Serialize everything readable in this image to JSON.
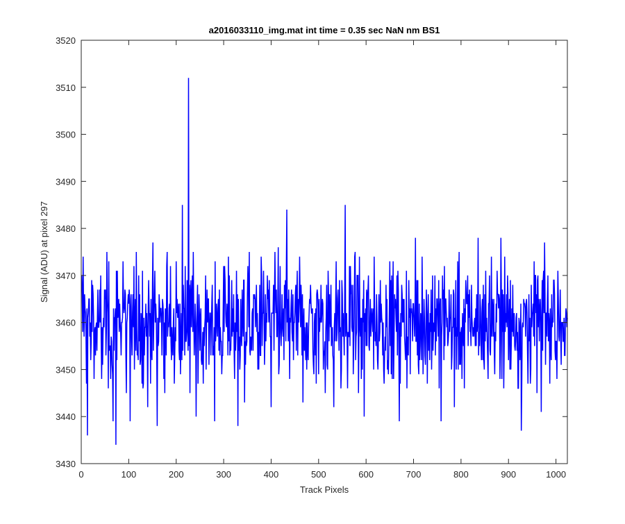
{
  "chart_data": {
    "type": "line",
    "title": "a2016033110_img.mat int time = 0.35 sec  NaN nm BS1",
    "xlabel": "Track Pixels",
    "ylabel": "Signal (ADU) at pixel 297",
    "xlim": [
      0,
      1024
    ],
    "ylim": [
      3430,
      3520
    ],
    "xticks": [
      0,
      100,
      200,
      300,
      400,
      500,
      600,
      700,
      800,
      900,
      1000
    ],
    "xtick_labels": [
      "0",
      "100",
      "200",
      "300",
      "400",
      "500",
      "600",
      "700",
      "800",
      "900",
      "1000"
    ],
    "yticks": [
      3430,
      3440,
      3450,
      3460,
      3470,
      3480,
      3490,
      3500,
      3510,
      3520
    ],
    "ytick_labels": [
      "3430",
      "3440",
      "3450",
      "3460",
      "3470",
      "3480",
      "3490",
      "3500",
      "3510",
      "3520"
    ],
    "grid": false,
    "series": [
      {
        "color": "#0000ff",
        "noise_baseline": 3460,
        "noise_stddev": 6,
        "n_points": 1024,
        "points": [
          [
            1,
            3470
          ],
          [
            4,
            3474
          ],
          [
            6,
            3457
          ],
          [
            9,
            3462
          ],
          [
            11,
            3447
          ],
          [
            13,
            3436
          ],
          [
            16,
            3465
          ],
          [
            20,
            3452
          ],
          [
            24,
            3468
          ],
          [
            30,
            3453
          ],
          [
            38,
            3461
          ],
          [
            43,
            3448
          ],
          [
            50,
            3465
          ],
          [
            57,
            3446
          ],
          [
            63,
            3457
          ],
          [
            67,
            3439
          ],
          [
            73,
            3434
          ],
          [
            76,
            3471
          ],
          [
            82,
            3460
          ],
          [
            88,
            3473
          ],
          [
            95,
            3445
          ],
          [
            103,
            3439
          ],
          [
            109,
            3466
          ],
          [
            115,
            3454
          ],
          [
            121,
            3470
          ],
          [
            128,
            3447
          ],
          [
            134,
            3459
          ],
          [
            140,
            3442
          ],
          [
            147,
            3465
          ],
          [
            155,
            3471
          ],
          [
            160,
            3438
          ],
          [
            167,
            3463
          ],
          [
            174,
            3448
          ],
          [
            181,
            3475
          ],
          [
            190,
            3452
          ],
          [
            196,
            3447
          ],
          [
            200,
            3473
          ],
          [
            207,
            3452
          ],
          [
            213,
            3485
          ],
          [
            218,
            3453
          ],
          [
            223,
            3469
          ],
          [
            226,
            3512
          ],
          [
            229,
            3445
          ],
          [
            236,
            3475
          ],
          [
            242,
            3440
          ],
          [
            248,
            3466
          ],
          [
            255,
            3452
          ],
          [
            262,
            3470
          ],
          [
            269,
            3451
          ],
          [
            276,
            3468
          ],
          [
            281,
            3439
          ],
          [
            288,
            3463
          ],
          [
            295,
            3456
          ],
          [
            302,
            3472
          ],
          [
            309,
            3453
          ],
          [
            317,
            3469
          ],
          [
            323,
            3448
          ],
          [
            330,
            3438
          ],
          [
            336,
            3465
          ],
          [
            344,
            3443
          ],
          [
            351,
            3472
          ],
          [
            358,
            3455
          ],
          [
            365,
            3466
          ],
          [
            372,
            3450
          ],
          [
            379,
            3474
          ],
          [
            386,
            3451
          ],
          [
            392,
            3470
          ],
          [
            400,
            3442
          ],
          [
            407,
            3465
          ],
          [
            415,
            3476
          ],
          [
            421,
            3455
          ],
          [
            427,
            3452
          ],
          [
            433,
            3484
          ],
          [
            439,
            3448
          ],
          [
            446,
            3466
          ],
          [
            453,
            3454
          ],
          [
            460,
            3474
          ],
          [
            467,
            3443
          ],
          [
            474,
            3460
          ],
          [
            481,
            3465
          ],
          [
            489,
            3451
          ],
          [
            495,
            3447
          ],
          [
            502,
            3458
          ],
          [
            508,
            3465
          ],
          [
            514,
            3445
          ],
          [
            519,
            3450
          ],
          [
            526,
            3468
          ],
          [
            532,
            3442
          ],
          [
            540,
            3465
          ],
          [
            547,
            3446
          ],
          [
            552,
            3462
          ],
          [
            556,
            3485
          ],
          [
            561,
            3446
          ],
          [
            567,
            3472
          ],
          [
            574,
            3455
          ],
          [
            582,
            3470
          ],
          [
            590,
            3448
          ],
          [
            596,
            3440
          ],
          [
            603,
            3466
          ],
          [
            610,
            3457
          ],
          [
            617,
            3474
          ],
          [
            624,
            3452
          ],
          [
            630,
            3469
          ],
          [
            637,
            3450
          ],
          [
            644,
            3465
          ],
          [
            651,
            3455
          ],
          [
            657,
            3473
          ],
          [
            664,
            3458
          ],
          [
            670,
            3439
          ],
          [
            676,
            3466
          ],
          [
            683,
            3452
          ],
          [
            690,
            3469
          ],
          [
            697,
            3461
          ],
          [
            704,
            3478
          ],
          [
            711,
            3449
          ],
          [
            718,
            3474
          ],
          [
            724,
            3453
          ],
          [
            731,
            3466
          ],
          [
            738,
            3450
          ],
          [
            745,
            3470
          ],
          [
            752,
            3457
          ],
          [
            758,
            3439
          ],
          [
            765,
            3472
          ],
          [
            772,
            3455
          ],
          [
            779,
            3466
          ],
          [
            786,
            3442
          ],
          [
            793,
            3473
          ],
          [
            800,
            3458
          ],
          [
            807,
            3446
          ],
          [
            814,
            3470
          ],
          [
            821,
            3455
          ],
          [
            828,
            3460
          ],
          [
            836,
            3478
          ],
          [
            843,
            3452
          ],
          [
            850,
            3466
          ],
          [
            857,
            3448
          ],
          [
            864,
            3474
          ],
          [
            871,
            3449
          ],
          [
            878,
            3466
          ],
          [
            884,
            3478
          ],
          [
            891,
            3455
          ],
          [
            898,
            3470
          ],
          [
            905,
            3450
          ],
          [
            912,
            3462
          ],
          [
            920,
            3446
          ],
          [
            927,
            3437
          ],
          [
            934,
            3464
          ],
          [
            941,
            3447
          ],
          [
            948,
            3468
          ],
          [
            955,
            3455
          ],
          [
            962,
            3470
          ],
          [
            969,
            3441
          ],
          [
            976,
            3477
          ],
          [
            982,
            3465
          ],
          [
            990,
            3452
          ],
          [
            996,
            3469
          ],
          [
            1002,
            3448
          ],
          [
            1009,
            3467
          ],
          [
            1014,
            3460
          ],
          [
            1018,
            3453
          ],
          [
            1022,
            3462
          ],
          [
            1024,
            3461
          ]
        ]
      }
    ]
  }
}
